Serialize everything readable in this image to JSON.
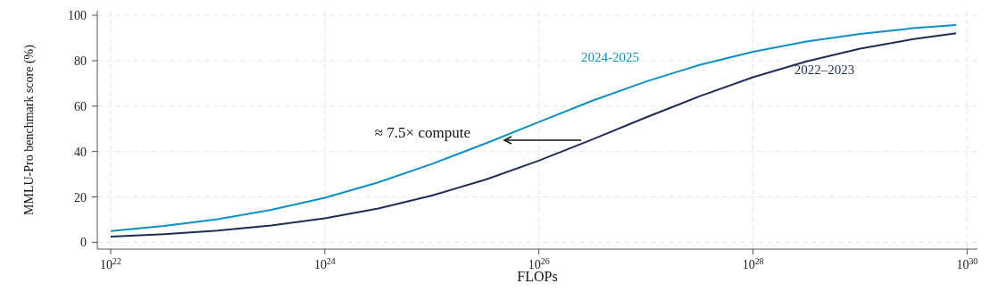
{
  "chart_data": {
    "type": "line",
    "xlabel": "FLOPs",
    "ylabel": "MMLU-Pro benchmark score (%)",
    "log": "x",
    "grid": true,
    "legend": false,
    "marker": "none",
    "line_style": "solid",
    "xlim": [
      7.5e+21,
      1.25e+30
    ],
    "xticks": [
      {
        "value": 1e+22,
        "label": "10$^{22}$"
      },
      {
        "value": 1e+24,
        "label": "10$^{24}$"
      },
      {
        "value": 1e+26,
        "label": "10$^{26}$"
      },
      {
        "value": 1e+28,
        "label": "10$^{28}$"
      },
      {
        "value": 1e+30,
        "label": "10$^{30}$"
      }
    ],
    "ylim": [
      -3,
      102
    ],
    "yticks": [
      0,
      20,
      40,
      60,
      80,
      100
    ],
    "x": [
      1e+22,
      3.16e+22,
      1e+23,
      3.16e+23,
      1e+24,
      3.16e+24,
      1e+25,
      3.16e+25,
      1e+26,
      3.16e+26,
      1e+27,
      3.16e+27,
      1e+28,
      3.16e+28,
      1e+29,
      3.16e+29,
      7.9e+29
    ],
    "series": [
      {
        "name": "2024-2025",
        "color": "#0e8fc4",
        "values": [
          5.0,
          7.2,
          10.2,
          14.3,
          19.6,
          26.4,
          34.5,
          43.5,
          53.0,
          62.4,
          70.8,
          78.1,
          83.9,
          88.4,
          91.8,
          94.3,
          95.7
        ]
      },
      {
        "name": "2022–2023",
        "color": "#1f2d55",
        "values": [
          2.5,
          3.6,
          5.2,
          7.4,
          10.6,
          14.9,
          20.6,
          27.6,
          36.0,
          45.3,
          55.0,
          64.3,
          72.7,
          79.7,
          85.3,
          89.5,
          92.1
        ]
      }
    ],
    "annotations": [
      "≈ 7.5× compute"
    ]
  }
}
